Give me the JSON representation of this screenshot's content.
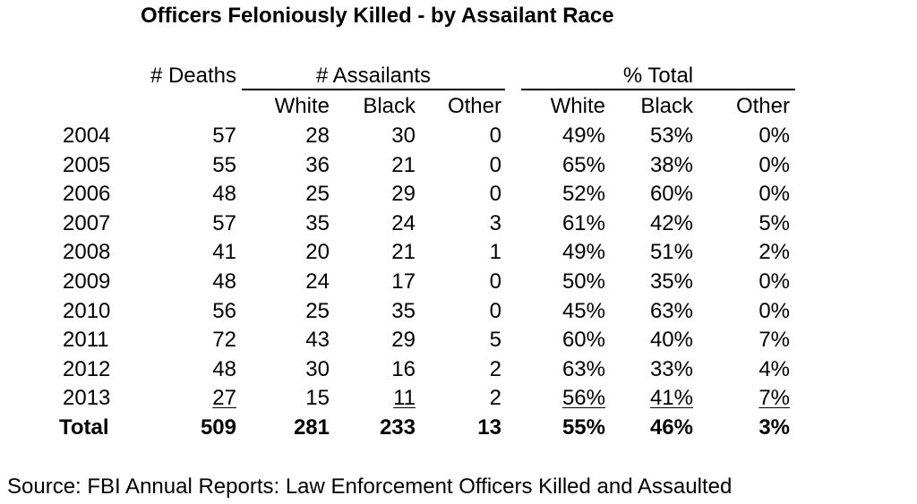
{
  "chart_data": {
    "type": "table",
    "title": "Officers Feloniously Killed - by Assailant Race",
    "group_headers": [
      "# Deaths",
      "# Assailants",
      "% Total"
    ],
    "sub_headers": [
      "White",
      "Black",
      "Other",
      "White",
      "Black",
      "Other"
    ],
    "rows": [
      {
        "year": "2004",
        "deaths": "57",
        "a_white": "28",
        "a_black": "30",
        "a_other": "0",
        "p_white": "49%",
        "p_black": "53%",
        "p_other": "0%"
      },
      {
        "year": "2005",
        "deaths": "55",
        "a_white": "36",
        "a_black": "21",
        "a_other": "0",
        "p_white": "65%",
        "p_black": "38%",
        "p_other": "0%"
      },
      {
        "year": "2006",
        "deaths": "48",
        "a_white": "25",
        "a_black": "29",
        "a_other": "0",
        "p_white": "52%",
        "p_black": "60%",
        "p_other": "0%"
      },
      {
        "year": "2007",
        "deaths": "57",
        "a_white": "35",
        "a_black": "24",
        "a_other": "3",
        "p_white": "61%",
        "p_black": "42%",
        "p_other": "5%"
      },
      {
        "year": "2008",
        "deaths": "41",
        "a_white": "20",
        "a_black": "21",
        "a_other": "1",
        "p_white": "49%",
        "p_black": "51%",
        "p_other": "2%"
      },
      {
        "year": "2009",
        "deaths": "48",
        "a_white": "24",
        "a_black": "17",
        "a_other": "0",
        "p_white": "50%",
        "p_black": "35%",
        "p_other": "0%"
      },
      {
        "year": "2010",
        "deaths": "56",
        "a_white": "25",
        "a_black": "35",
        "a_other": "0",
        "p_white": "45%",
        "p_black": "63%",
        "p_other": "0%"
      },
      {
        "year": "2011",
        "deaths": "72",
        "a_white": "43",
        "a_black": "29",
        "a_other": "5",
        "p_white": "60%",
        "p_black": "40%",
        "p_other": "7%"
      },
      {
        "year": "2012",
        "deaths": "48",
        "a_white": "30",
        "a_black": "16",
        "a_other": "2",
        "p_white": "63%",
        "p_black": "33%",
        "p_other": "4%"
      },
      {
        "year": "2013",
        "deaths": "27",
        "a_white": "15",
        "a_black": "11",
        "a_other": "2",
        "p_white": "56%",
        "p_black": "41%",
        "p_other": "7%"
      }
    ],
    "underlined": {
      "2013": [
        "deaths",
        "a_black",
        "p_white",
        "p_black",
        "p_other"
      ]
    },
    "total": {
      "year": "Total",
      "deaths": "509",
      "a_white": "281",
      "a_black": "233",
      "a_other": "13",
      "p_white": "55%",
      "p_black": "46%",
      "p_other": "3%"
    }
  },
  "source": "Source: FBI Annual Reports: Law Enforcement Officers Killed and Assaulted"
}
